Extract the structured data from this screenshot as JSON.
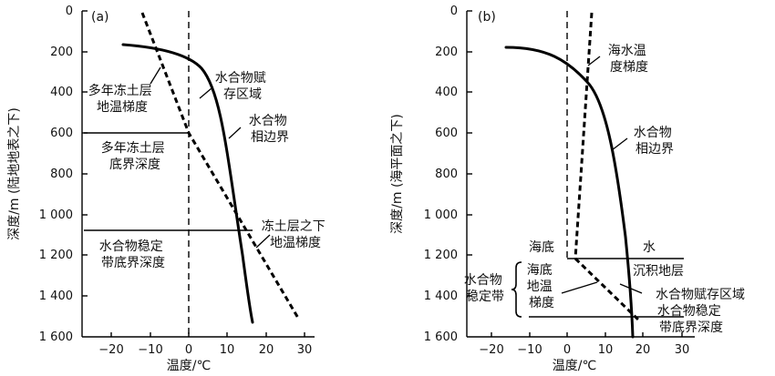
{
  "panel_a": {
    "panel_label": "(a)",
    "ylabel": "深度/m (陆地地表之下)",
    "xlabel": "温度/℃",
    "labels": {
      "permafrost_gradient": [
        "多年冻土层",
        "地温梯度"
      ],
      "hydrate_zone": [
        "水合物赋",
        "存区域"
      ],
      "hydrate_boundary": [
        "水合物",
        "相边界"
      ],
      "permafrost_base": [
        "多年冻土层",
        "底界深度"
      ],
      "below_gradient": [
        "冻土层之下",
        "地温梯度"
      ],
      "stability_base": [
        "水合物稳定",
        "带底界深度"
      ]
    }
  },
  "panel_b": {
    "panel_label": "(b)",
    "ylabel": "深度/m (海平面之下)",
    "xlabel": "温度/℃",
    "labels": {
      "seawater_gradient": [
        "海水温",
        "度梯度"
      ],
      "hydrate_boundary": [
        "水合物",
        "相边界"
      ],
      "seafloor": "海底",
      "water": "水",
      "sediment": "沉积地层",
      "stability_zone": [
        "水合物",
        "稳定带"
      ],
      "seafloor_gradient": [
        "海底",
        "地温",
        "梯度"
      ],
      "hydrate_zone": "水合物赋存区域",
      "stability_base": [
        "水合物稳定",
        "带底界深度"
      ]
    }
  },
  "chart_data": [
    {
      "type": "line",
      "xlabel": "温度/℃",
      "ylabel": "深度/m (陆地地表之下)",
      "xlim": [
        -30,
        30
      ],
      "ylim": [
        1600,
        0
      ],
      "x_ticks": [
        "−20",
        "−10",
        "0",
        "10",
        "20",
        "30"
      ],
      "y_ticks": [
        "0",
        "200",
        "400",
        "600",
        "800",
        "1 000",
        "1 200",
        "1 400",
        "1 600"
      ],
      "series": [
        {
          "style": "solid",
          "x": [
            -17,
            -12,
            -7,
            -3,
            0,
            3,
            6,
            9,
            11,
            13,
            14,
            15,
            16
          ],
          "y": [
            170,
            180,
            200,
            230,
            270,
            330,
            420,
            560,
            700,
            900,
            1080,
            1300,
            1530
          ]
        },
        {
          "style": "dashed",
          "x": [
            -12,
            -9,
            -6,
            -3,
            0,
            4,
            9,
            14,
            19,
            24,
            28
          ],
          "y": [
            50,
            180,
            320,
            460,
            600,
            720,
            880,
            1070,
            1230,
            1390,
            1520
          ]
        }
      ],
      "hlines": [
        600,
        1080
      ]
    },
    {
      "type": "line",
      "xlabel": "温度/℃",
      "ylabel": "深度/m (海平面之下)",
      "xlim": [
        -30,
        30
      ],
      "ylim": [
        1600,
        0
      ],
      "x_ticks": [
        "−20",
        "−10",
        "0",
        "10",
        "20",
        "30"
      ],
      "y_ticks": [
        "0",
        "200",
        "400",
        "600",
        "800",
        "1 000",
        "1 200",
        "1 400",
        "1 600"
      ],
      "series": [
        {
          "style": "solid",
          "x": [
            -16,
            -10,
            -5,
            0,
            4,
            8,
            11,
            13,
            14.5,
            15.5,
            16
          ],
          "y": [
            180,
            190,
            230,
            300,
            410,
            620,
            860,
            1120,
            1320,
            1480,
            1600
          ]
        },
        {
          "style": "dashed",
          "x": [
            6,
            5,
            4,
            3,
            2,
            1.5,
            1
          ],
          "y": [
            20,
            200,
            420,
            660,
            900,
            1080,
            1220
          ]
        },
        {
          "style": "dashed",
          "x": [
            1,
            5,
            10,
            15,
            18
          ],
          "y": [
            1220,
            1310,
            1400,
            1490,
            1550
          ]
        }
      ],
      "hlines": [
        1220,
        1510
      ]
    }
  ]
}
